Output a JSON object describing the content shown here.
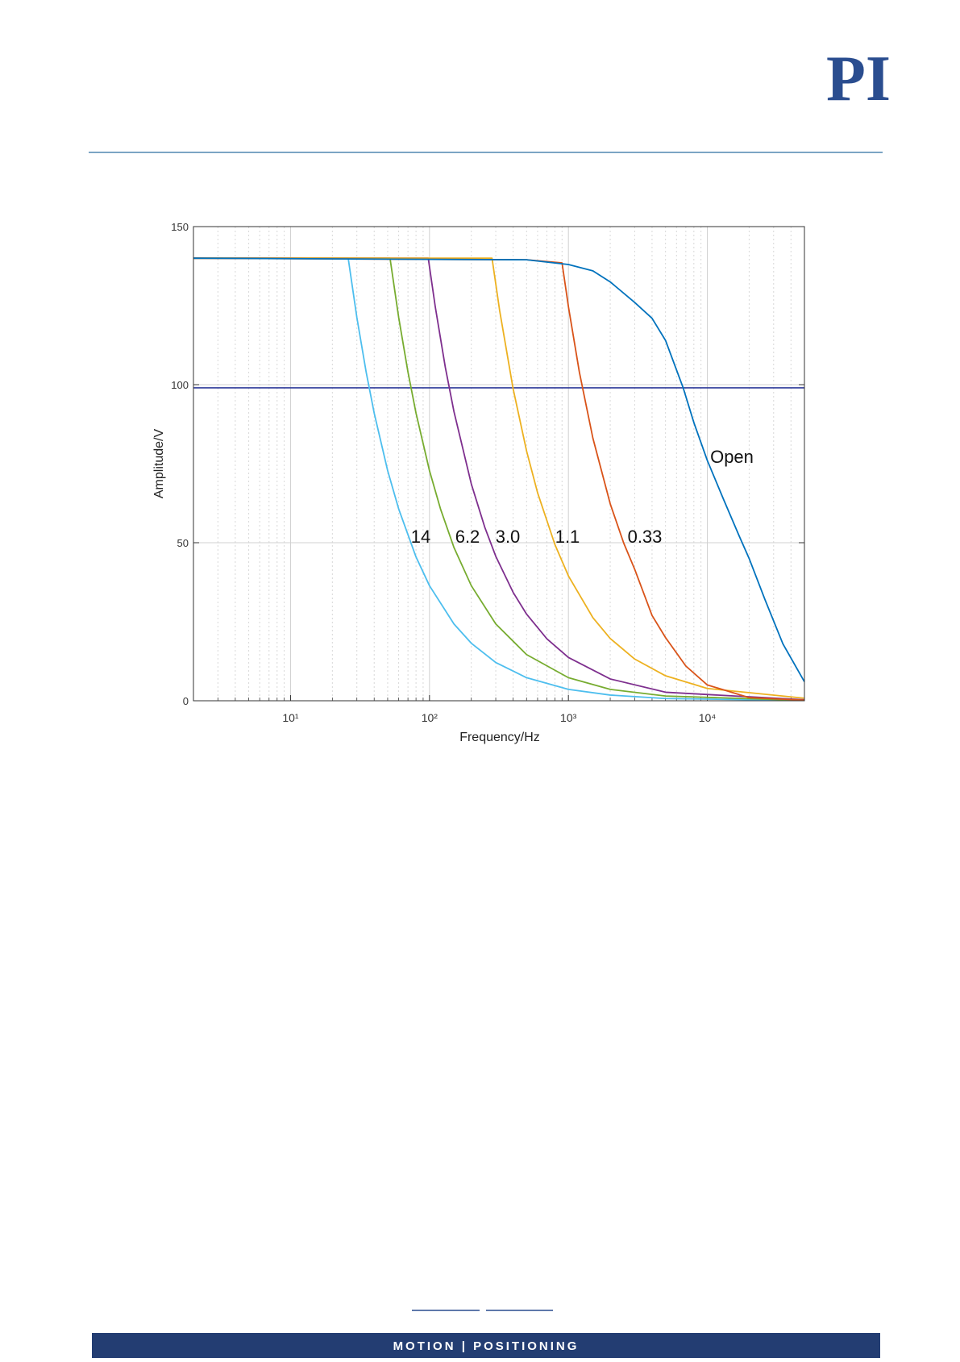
{
  "header": {
    "logo": "PI"
  },
  "chart_data": {
    "type": "line",
    "xlabel": "Frequency/Hz",
    "ylabel": "Amplitude/V",
    "xscale": "log",
    "xlim": [
      2,
      50000
    ],
    "ylim": [
      0,
      150
    ],
    "xticks": [
      {
        "value": 10,
        "label": "10¹"
      },
      {
        "value": 100,
        "label": "10²"
      },
      {
        "value": 1000,
        "label": "10³"
      },
      {
        "value": 10000,
        "label": "10⁴"
      }
    ],
    "yticks": [
      0,
      50,
      100,
      150
    ],
    "grid": true,
    "x_minor_grid": true,
    "reference_line": {
      "value": 99,
      "color": "#2e3a9a"
    },
    "series": [
      {
        "name": "14",
        "color": "#4dbeee",
        "x": [
          2,
          26,
          30,
          35,
          40,
          50,
          60,
          80,
          100,
          150,
          200,
          300,
          500,
          1000,
          2000,
          5000,
          50000
        ],
        "values": [
          140,
          140,
          121.3,
          104,
          91,
          72.8,
          60.7,
          45.5,
          36.4,
          24.3,
          18.2,
          12.1,
          7.3,
          3.6,
          1.8,
          0.7,
          0.1
        ]
      },
      {
        "name": "6.2",
        "color": "#77ac30",
        "x": [
          2,
          52,
          60,
          70,
          80,
          100,
          120,
          150,
          200,
          300,
          500,
          1000,
          2000,
          5000,
          50000
        ],
        "values": [
          140,
          140,
          121.3,
          104,
          91,
          72.8,
          60.7,
          48.5,
          36.4,
          24.3,
          14.6,
          7.3,
          3.6,
          1.5,
          0.1
        ]
      },
      {
        "name": "3.0",
        "color": "#7e2f8e",
        "x": [
          2,
          98,
          110,
          130,
          150,
          200,
          250,
          300,
          400,
          500,
          700,
          1000,
          2000,
          5000,
          50000
        ],
        "values": [
          140,
          140,
          124.7,
          105.5,
          91.5,
          68.6,
          54.9,
          45.7,
          34.3,
          27.4,
          19.6,
          13.7,
          6.9,
          2.7,
          0.3
        ]
      },
      {
        "name": "1.1",
        "color": "#edb120",
        "x": [
          2,
          282,
          320,
          400,
          500,
          600,
          800,
          1000,
          1500,
          2000,
          3000,
          5000,
          10000,
          50000
        ],
        "values": [
          140,
          140,
          123.4,
          98.7,
          79,
          65.8,
          49.4,
          39.5,
          26.3,
          19.7,
          13.2,
          7.9,
          3.9,
          0.8
        ]
      },
      {
        "name": "0.33",
        "color": "#d95319",
        "x": [
          2,
          500,
          900,
          1000,
          1200,
          1500,
          2000,
          2500,
          3000,
          4000,
          5000,
          7000,
          10000,
          20000,
          50000
        ],
        "values": [
          140,
          139.5,
          138.5,
          124.7,
          103.9,
          83.1,
          62.3,
          49.9,
          41.6,
          27,
          20,
          11,
          5,
          1,
          0.2
        ]
      },
      {
        "name": "Open",
        "color": "#0072bd",
        "x": [
          2,
          500,
          1000,
          1500,
          2000,
          3000,
          4000,
          5000,
          6700,
          8000,
          10000,
          13000,
          17000,
          20000,
          26000,
          35000,
          50000
        ],
        "values": [
          140,
          139.5,
          138,
          136,
          132.5,
          126,
          121,
          114,
          99,
          88,
          76,
          64,
          52,
          45,
          32,
          18,
          6
        ]
      }
    ]
  },
  "footer": {
    "tagline": "MOTION | POSITIONING"
  }
}
